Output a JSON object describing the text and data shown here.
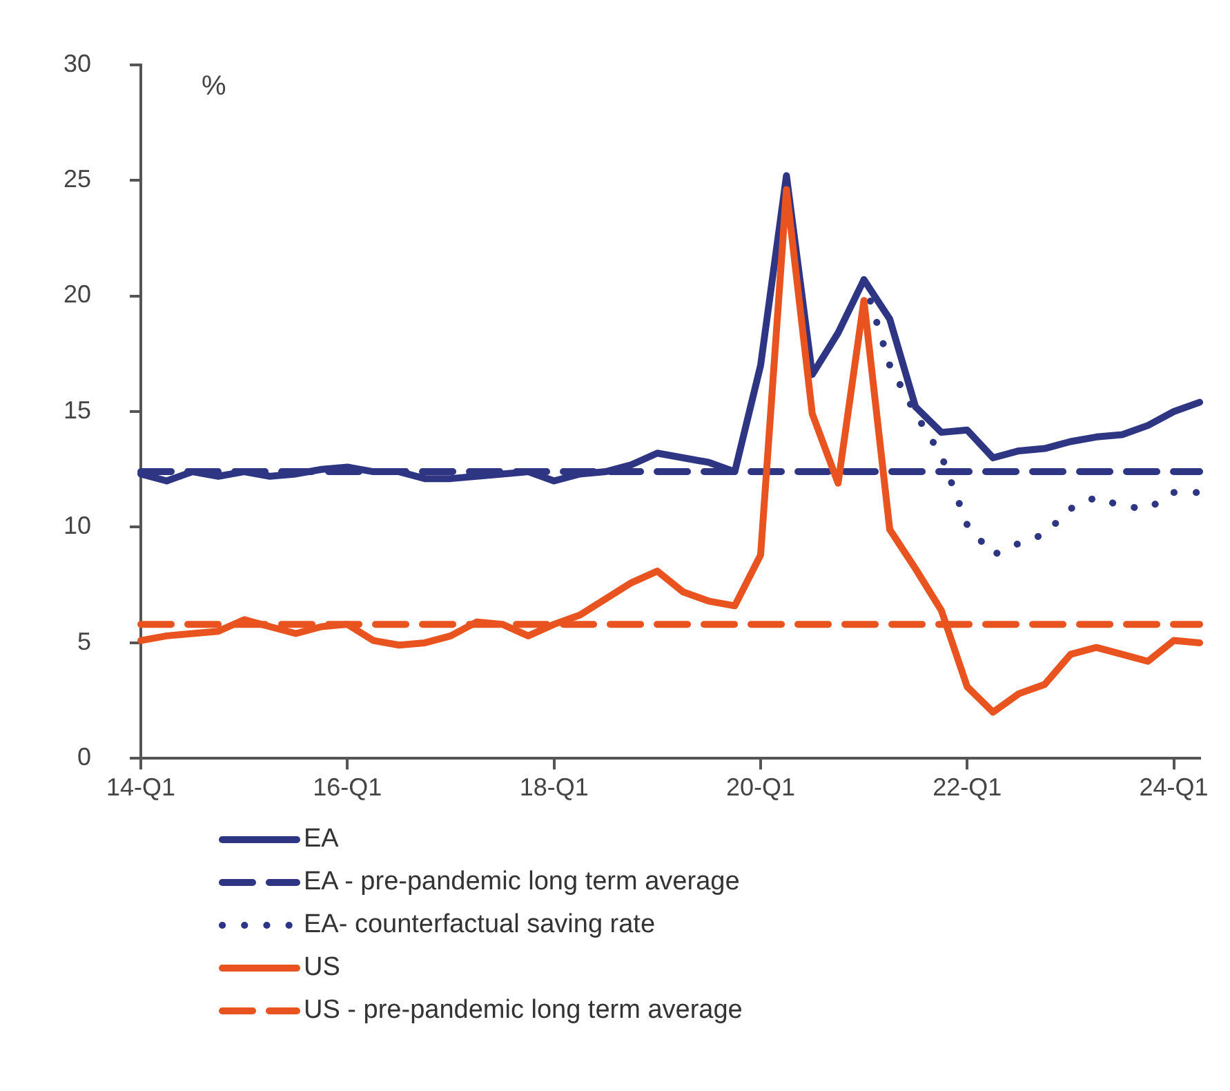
{
  "chart_data": {
    "type": "line",
    "ylabel": "%",
    "categories": [
      "14-Q1",
      null,
      null,
      null,
      null,
      null,
      null,
      null,
      "16-Q1",
      null,
      null,
      null,
      null,
      null,
      null,
      null,
      "18-Q1",
      null,
      null,
      null,
      null,
      null,
      null,
      null,
      "20-Q1",
      null,
      null,
      null,
      null,
      null,
      null,
      null,
      "22-Q1",
      null,
      null,
      null,
      null,
      null,
      null,
      null,
      "24-Q1",
      null
    ],
    "series": [
      {
        "name": "EA",
        "color": "#2e3583",
        "line_style": "solid",
        "values": [
          12.3,
          12.0,
          12.4,
          12.2,
          12.4,
          12.2,
          12.3,
          12.5,
          12.6,
          12.4,
          12.4,
          12.1,
          12.1,
          12.2,
          12.3,
          12.4,
          12.0,
          12.3,
          12.4,
          12.7,
          13.2,
          13.0,
          12.8,
          12.4,
          17.0,
          25.2,
          16.6,
          18.4,
          20.7,
          19.0,
          15.2,
          14.1,
          14.2,
          13.0,
          13.3,
          13.4,
          13.7,
          13.9,
          14.0,
          14.4,
          15.0,
          15.4
        ]
      },
      {
        "name": "EA - pre-pandemic long term average",
        "color": "#2e3583",
        "line_style": "dashed",
        "values": [
          12.4,
          12.4,
          12.4,
          12.4,
          12.4,
          12.4,
          12.4,
          12.4,
          12.4,
          12.4,
          12.4,
          12.4,
          12.4,
          12.4,
          12.4,
          12.4,
          12.4,
          12.4,
          12.4,
          12.4,
          12.4,
          12.4,
          12.4,
          12.4,
          12.4,
          12.4,
          12.4,
          12.4,
          12.4,
          12.4,
          12.4,
          12.4,
          12.4,
          12.4,
          12.4,
          12.4,
          12.4,
          12.4,
          12.4,
          12.4,
          12.4,
          12.4
        ]
      },
      {
        "name": "EA- counterfactual saving rate",
        "color": "#2e3583",
        "line_style": "dotted",
        "values": [
          null,
          null,
          null,
          null,
          null,
          null,
          null,
          null,
          null,
          null,
          null,
          null,
          null,
          null,
          null,
          null,
          null,
          null,
          null,
          null,
          null,
          null,
          null,
          null,
          null,
          null,
          null,
          null,
          20.7,
          17.0,
          14.9,
          13.1,
          10.1,
          8.8,
          9.3,
          9.7,
          10.8,
          11.3,
          10.9,
          10.8,
          11.5,
          11.5
        ]
      },
      {
        "name": "US",
        "color": "#e8531f",
        "line_style": "solid",
        "values": [
          5.1,
          5.3,
          5.4,
          5.5,
          6.0,
          5.7,
          5.4,
          5.7,
          5.8,
          5.1,
          4.9,
          5.0,
          5.3,
          5.9,
          5.8,
          5.3,
          5.8,
          6.2,
          6.9,
          7.6,
          8.1,
          7.2,
          6.8,
          6.6,
          8.8,
          24.6,
          14.9,
          11.9,
          19.8,
          9.9,
          8.2,
          6.4,
          3.1,
          2.0,
          2.8,
          3.2,
          4.5,
          4.8,
          4.5,
          4.2,
          5.1,
          5.0
        ]
      },
      {
        "name": "US - pre-pandemic long term average",
        "color": "#e8531f",
        "line_style": "dashed",
        "values": [
          5.8,
          5.8,
          5.8,
          5.8,
          5.8,
          5.8,
          5.8,
          5.8,
          5.8,
          5.8,
          5.8,
          5.8,
          5.8,
          5.8,
          5.8,
          5.8,
          5.8,
          5.8,
          5.8,
          5.8,
          5.8,
          5.8,
          5.8,
          5.8,
          5.8,
          5.8,
          5.8,
          5.8,
          5.8,
          5.8,
          5.8,
          5.8,
          5.8,
          5.8,
          5.8,
          5.8,
          5.8,
          5.8,
          5.8,
          5.8,
          5.8,
          5.8
        ]
      }
    ],
    "ylim": [
      0,
      30
    ],
    "yticks": [
      0,
      5,
      10,
      15,
      20,
      25,
      30
    ],
    "grid": false,
    "legend": "bottom",
    "marker": "none"
  }
}
